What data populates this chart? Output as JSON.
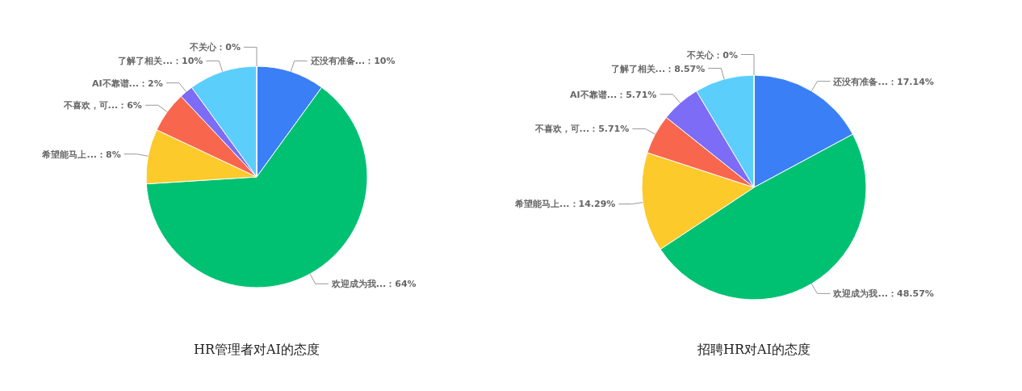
{
  "chart_data": [
    {
      "type": "pie",
      "title": "HR管理者对AI的态度",
      "categories": [
        "还没有准备...",
        "欢迎成为我...",
        "希望能马上...",
        "不喜欢，可...",
        "AI不靠谱...",
        "了解了相关...",
        "不关心"
      ],
      "values": [
        10,
        64,
        8,
        6,
        2,
        10,
        0
      ],
      "value_labels": [
        "：10%",
        "：64%",
        "：8%",
        "：6%",
        "：2%",
        "：10%",
        "：0%"
      ],
      "colors": [
        "#3a7ff6",
        "#00c172",
        "#fdca2b",
        "#f8674d",
        "#7c6cf6",
        "#5bcefc",
        "#3a7ff6"
      ]
    },
    {
      "type": "pie",
      "title": "招聘HR对AI的态度",
      "categories": [
        "还没有准备...",
        "欢迎成为我...",
        "希望能马上...",
        "不喜欢，可...",
        "AI不靠谱...",
        "了解了相关...",
        "不关心"
      ],
      "values": [
        17.14,
        48.57,
        14.29,
        5.71,
        5.71,
        8.57,
        0
      ],
      "value_labels": [
        "：17.14%",
        "：48.57%",
        "：14.29%",
        "：5.71%",
        "：5.71%",
        "：8.57%",
        "：0%"
      ],
      "colors": [
        "#3a7ff6",
        "#00c172",
        "#fdca2b",
        "#f8674d",
        "#7c6cf6",
        "#5bcefc",
        "#3a7ff6"
      ]
    }
  ]
}
